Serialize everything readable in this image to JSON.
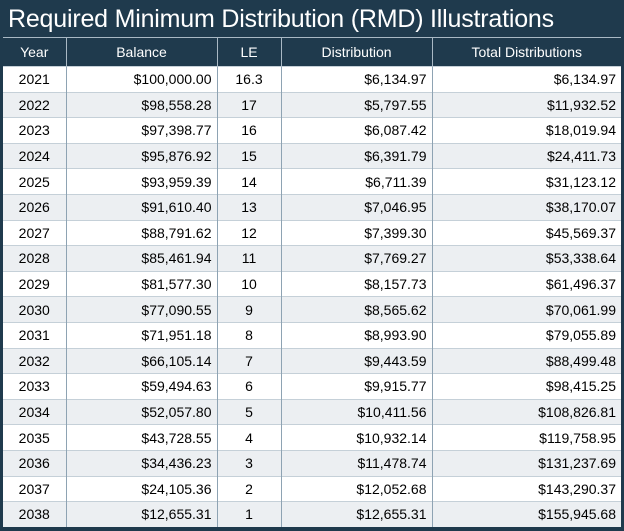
{
  "title": "Required Minimum Distribution (RMD) Illustrations",
  "columns": [
    "Year",
    "Balance",
    "LE",
    "Distribution",
    "Total Distributions"
  ],
  "rows": [
    {
      "year": "2021",
      "balance": "$100,000.00",
      "le": "16.3",
      "distribution": "$6,134.97",
      "total": "$6,134.97"
    },
    {
      "year": "2022",
      "balance": "$98,558.28",
      "le": "17",
      "distribution": "$5,797.55",
      "total": "$11,932.52"
    },
    {
      "year": "2023",
      "balance": "$97,398.77",
      "le": "16",
      "distribution": "$6,087.42",
      "total": "$18,019.94"
    },
    {
      "year": "2024",
      "balance": "$95,876.92",
      "le": "15",
      "distribution": "$6,391.79",
      "total": "$24,411.73"
    },
    {
      "year": "2025",
      "balance": "$93,959.39",
      "le": "14",
      "distribution": "$6,711.39",
      "total": "$31,123.12"
    },
    {
      "year": "2026",
      "balance": "$91,610.40",
      "le": "13",
      "distribution": "$7,046.95",
      "total": "$38,170.07"
    },
    {
      "year": "2027",
      "balance": "$88,791.62",
      "le": "12",
      "distribution": "$7,399.30",
      "total": "$45,569.37"
    },
    {
      "year": "2028",
      "balance": "$85,461.94",
      "le": "11",
      "distribution": "$7,769.27",
      "total": "$53,338.64"
    },
    {
      "year": "2029",
      "balance": "$81,577.30",
      "le": "10",
      "distribution": "$8,157.73",
      "total": "$61,496.37"
    },
    {
      "year": "2030",
      "balance": "$77,090.55",
      "le": "9",
      "distribution": "$8,565.62",
      "total": "$70,061.99"
    },
    {
      "year": "2031",
      "balance": "$71,951.18",
      "le": "8",
      "distribution": "$8,993.90",
      "total": "$79,055.89"
    },
    {
      "year": "2032",
      "balance": "$66,105.14",
      "le": "7",
      "distribution": "$9,443.59",
      "total": "$88,499.48"
    },
    {
      "year": "2033",
      "balance": "$59,494.63",
      "le": "6",
      "distribution": "$9,915.77",
      "total": "$98,415.25"
    },
    {
      "year": "2034",
      "balance": "$52,057.80",
      "le": "5",
      "distribution": "$10,411.56",
      "total": "$108,826.81"
    },
    {
      "year": "2035",
      "balance": "$43,728.55",
      "le": "4",
      "distribution": "$10,932.14",
      "total": "$119,758.95"
    },
    {
      "year": "2036",
      "balance": "$34,436.23",
      "le": "3",
      "distribution": "$11,478.74",
      "total": "$131,237.69"
    },
    {
      "year": "2037",
      "balance": "$24,105.36",
      "le": "2",
      "distribution": "$12,052.68",
      "total": "$143,290.37"
    },
    {
      "year": "2038",
      "balance": "$12,655.31",
      "le": "1",
      "distribution": "$12,655.31",
      "total": "$155,945.68"
    }
  ]
}
